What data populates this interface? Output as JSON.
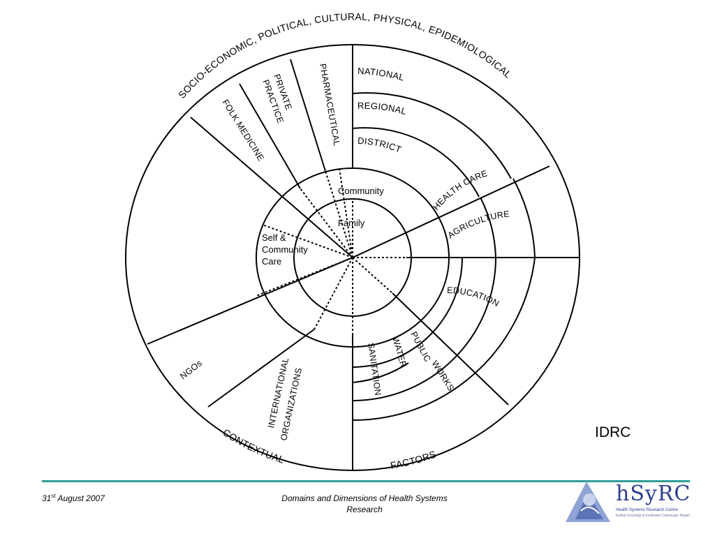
{
  "diagram": {
    "outer_arc_top": "SOCIO-ECONOMIC, POLITICAL, CULTURAL, PHYSICAL, EPIDEMIOLOGICAL",
    "outer_arc_bottom_left": "CONTEXTUAL",
    "outer_arc_bottom_right": "FACTORS",
    "segments": {
      "folk_medicine": "FOLK MEDICINE",
      "private_practice_line1": "PRIVATE",
      "private_practice_line2": "PRACTICE",
      "pharmaceutical": "PHARMACEUTICAL",
      "ngos": "NGOs",
      "international_line1": "INTERNATIONAL",
      "international_line2": "ORGANIZATIONS"
    },
    "health_care_levels": {
      "national": "NATIONAL",
      "regional": "REGIONAL",
      "district": "DISTRICT"
    },
    "sectors": {
      "health_care": "HEALTH CARE",
      "agriculture": "AGRICULTURE",
      "education": "EDUCATION",
      "public_works_line1": "PUBLIC",
      "public_works_line2": "WORKS",
      "water": "WATER",
      "sanitation": "SANITATION"
    },
    "inner": {
      "community": "Community",
      "family": "Family",
      "self_care_line1": "Self &",
      "self_care_line2": "Community",
      "self_care_line3": "Care"
    }
  },
  "source_label": "IDRC",
  "footer": {
    "date_day": "31",
    "date_suffix": "st",
    "date_rest": " August 2007",
    "title_line1": "Domains and Dimensions of Health Systems",
    "title_line2": "Research"
  },
  "logo": {
    "name": "hSyRC",
    "subtitle": "Health Systems Research Centre",
    "tagline": "Institut Sosiologi & Kesihatan Cawangan Negeri"
  },
  "colors": {
    "accent_rule": "#2f9e96",
    "logo_blue": "#2b3f8f"
  }
}
